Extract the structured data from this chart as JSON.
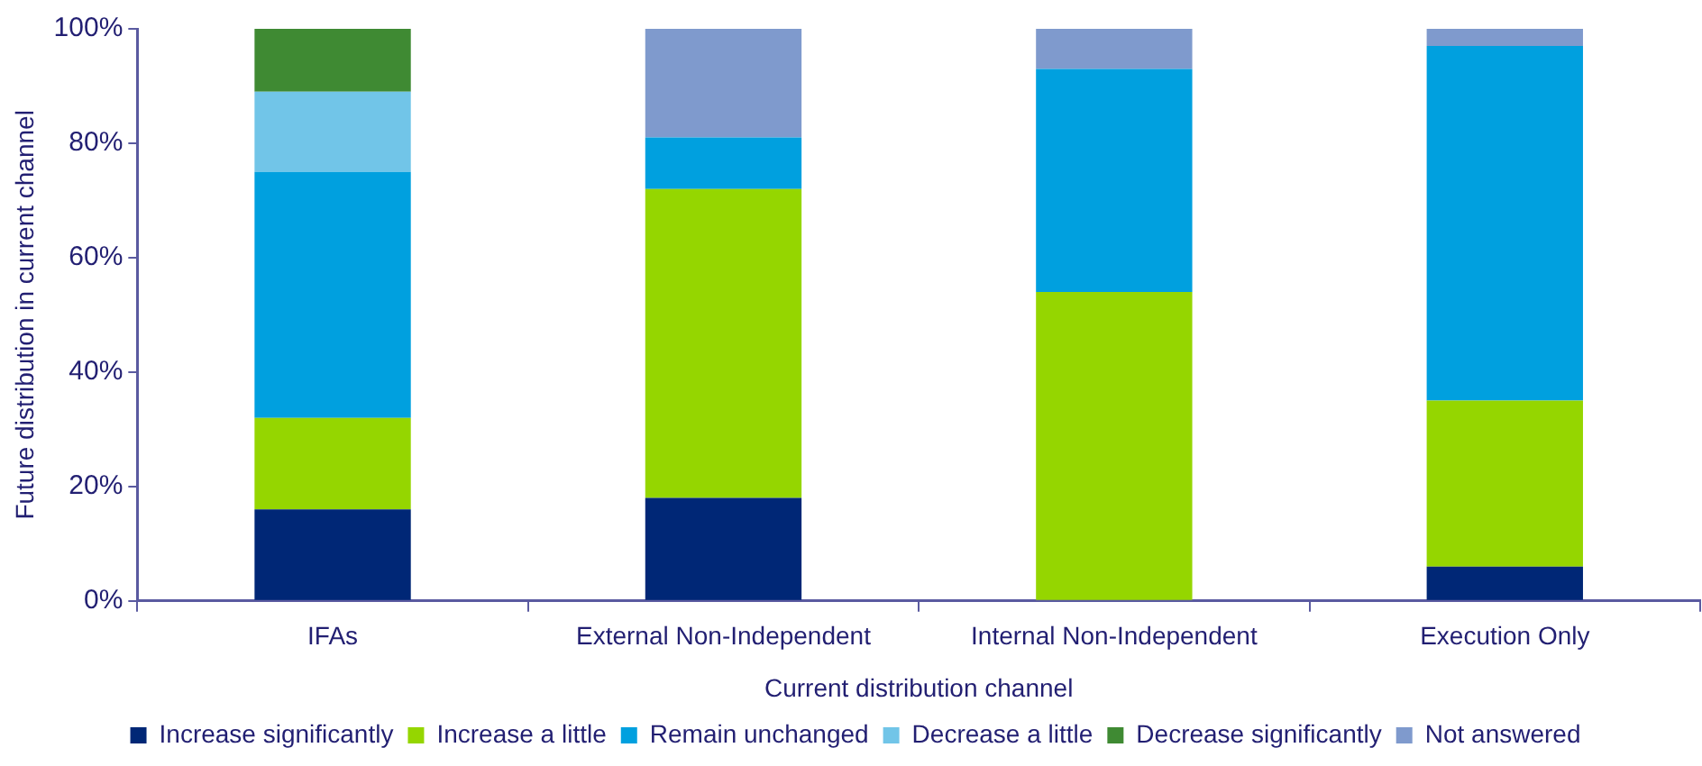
{
  "chart_data": {
    "type": "bar",
    "stacked": true,
    "xlabel": "Current distribution channel",
    "ylabel": "Future distribution in current channel",
    "categories": [
      "IFAs",
      "External Non-Independent",
      "Internal Non-Independent",
      "Execution Only"
    ],
    "series": [
      {
        "name": "Increase significantly",
        "color": "#002776",
        "values": [
          16,
          18,
          0,
          6
        ]
      },
      {
        "name": "Increase a little",
        "color": "#95d600",
        "values": [
          16,
          54,
          54,
          29
        ]
      },
      {
        "name": "Remain unchanged",
        "color": "#00a0df",
        "values": [
          43,
          9,
          39,
          62
        ]
      },
      {
        "name": "Decrease a little",
        "color": "#71c5e8",
        "values": [
          14,
          0,
          0,
          0
        ]
      },
      {
        "name": "Decrease significantly",
        "color": "#3f8a33",
        "values": [
          11,
          0,
          0,
          0
        ]
      },
      {
        "name": "Not answered",
        "color": "#7f9acd",
        "values": [
          0,
          19,
          7,
          3
        ]
      }
    ],
    "ylim": [
      0,
      100
    ],
    "yticks": [
      {
        "value": 0,
        "label": "0%"
      },
      {
        "value": 20,
        "label": "20%"
      },
      {
        "value": 40,
        "label": "40%"
      },
      {
        "value": 60,
        "label": "60%"
      },
      {
        "value": 80,
        "label": "80%"
      },
      {
        "value": 100,
        "label": "100%"
      }
    ],
    "grid": false,
    "legend": "bottom"
  }
}
